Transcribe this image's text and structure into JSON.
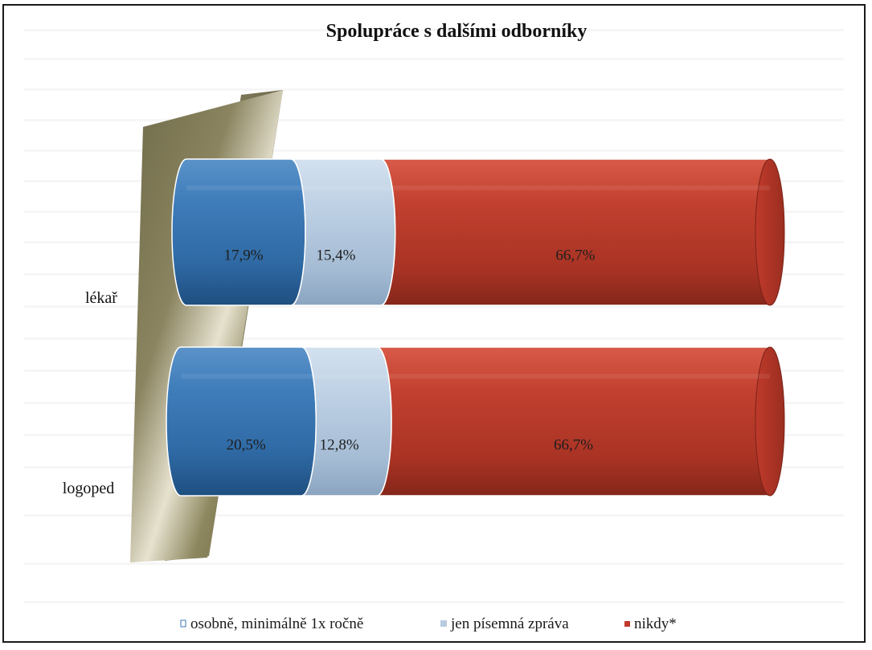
{
  "chart_data": {
    "type": "bar",
    "orientation": "horizontal",
    "stacked": true,
    "percent_stacked": true,
    "title": "Spolupráce s dalšími odborníky",
    "categories": [
      "lékař",
      "logoped"
    ],
    "series": [
      {
        "name": "osobně, minimálně 1x ročně",
        "color": "#3b78b5",
        "values": [
          17.9,
          20.5
        ],
        "labels": [
          "17,9%",
          "20,5%"
        ]
      },
      {
        "name": "jen písemná zpráva",
        "color": "#b8cbe0",
        "values": [
          15.4,
          12.8
        ],
        "labels": [
          "15,4%",
          "12,8%"
        ]
      },
      {
        "name": "nikdy*",
        "color": "#c0392b",
        "values": [
          66.7,
          66.7
        ],
        "labels": [
          "66,7%",
          "66,7%"
        ]
      }
    ],
    "xlim": [
      0,
      100
    ],
    "legend_position": "bottom",
    "grid": false,
    "bar_style": "3d-cylinder"
  }
}
